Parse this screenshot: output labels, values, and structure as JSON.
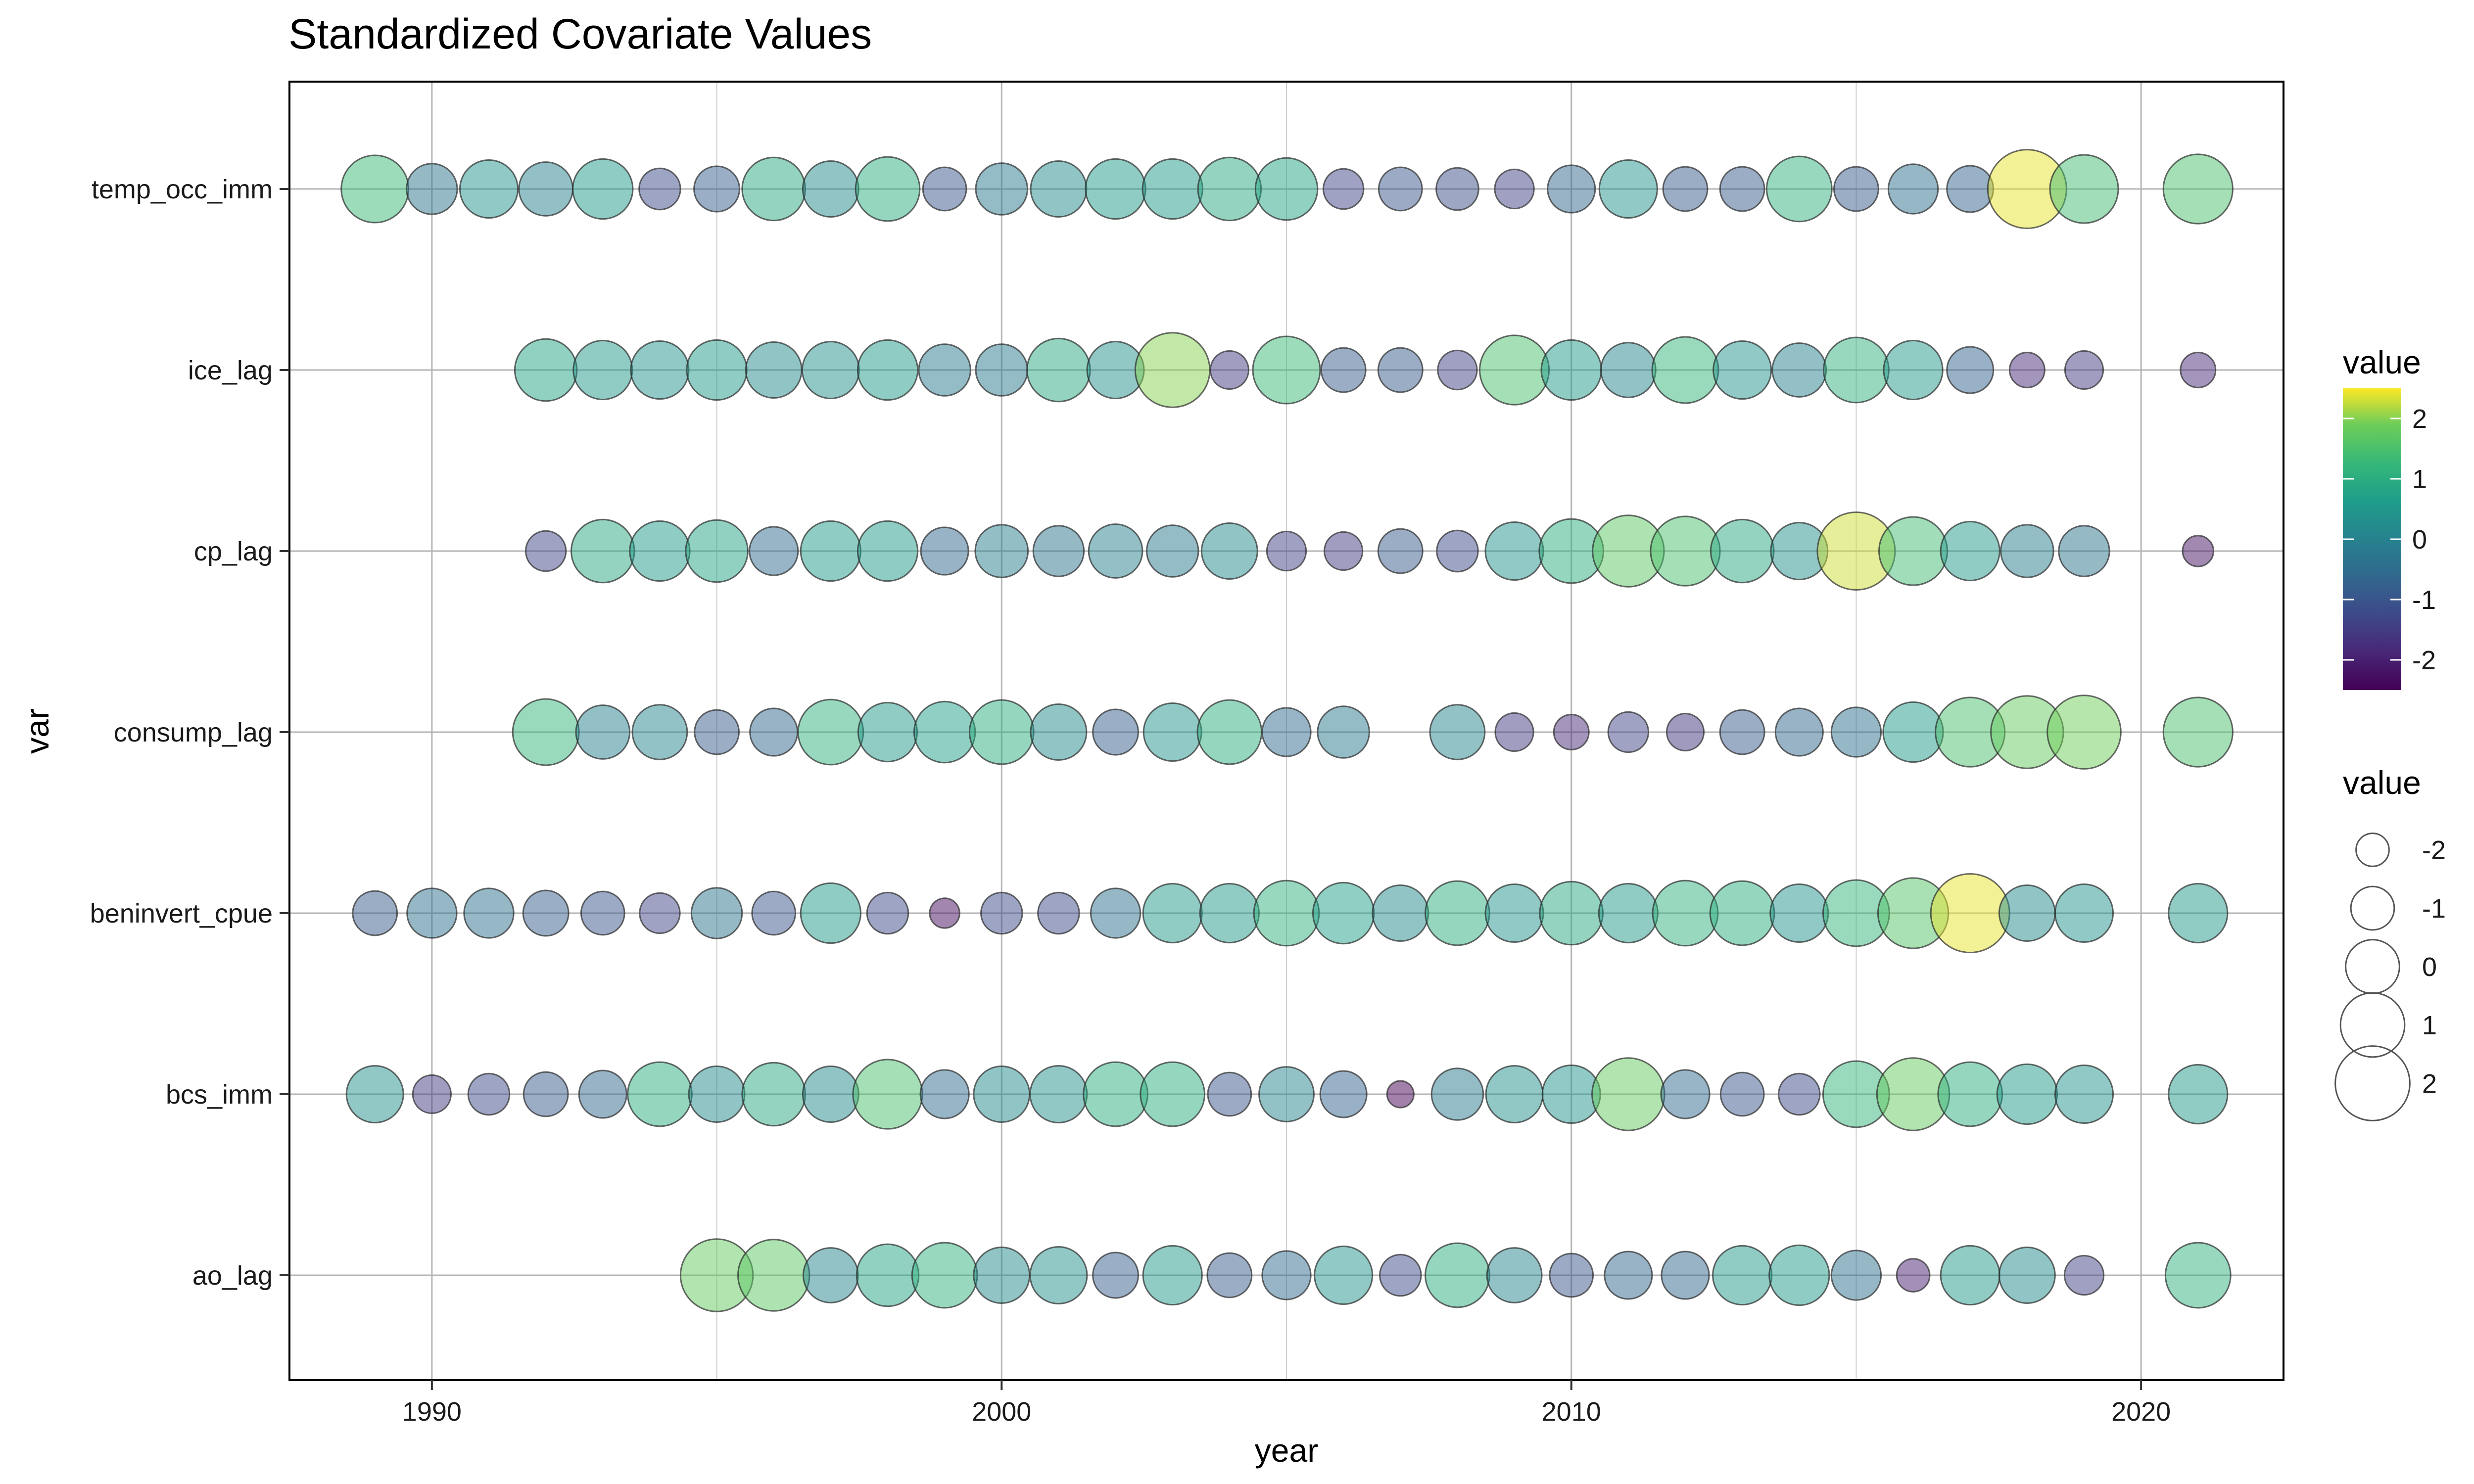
{
  "chart_data": {
    "type": "scatter",
    "title": "Standardized Covariate Values",
    "xlabel": "year",
    "ylabel": "var",
    "xlim": [
      1987.5,
      2022.5
    ],
    "x_ticks": [
      1990,
      2000,
      2010,
      2020
    ],
    "categories": [
      "temp_occ_imm",
      "ice_lag",
      "cp_lag",
      "consump_lag",
      "beninvert_cpue",
      "bcs_imm",
      "ao_lag"
    ],
    "color_legend": {
      "title": "value",
      "ticks": [
        2,
        1,
        0,
        -1,
        -2
      ],
      "range": [
        -2.5,
        2.5
      ]
    },
    "size_legend": {
      "title": "value",
      "values": [
        -2,
        -1,
        0,
        1,
        2
      ]
    },
    "grid": true,
    "series": [
      {
        "var": "temp_occ_imm",
        "x": [
          1989,
          1990,
          1991,
          1992,
          1993,
          1994,
          1995,
          1996,
          1997,
          1998,
          1999,
          2000,
          2001,
          2002,
          2003,
          2004,
          2005,
          2006,
          2007,
          2008,
          2009,
          2010,
          2011,
          2012,
          2013,
          2014,
          2015,
          2016,
          2017,
          2018,
          2019,
          2021
        ],
        "values": [
          1.3,
          -0.3,
          0.4,
          0.0,
          0.6,
          -1.2,
          -0.8,
          0.9,
          0.2,
          1.0,
          -1.0,
          -0.2,
          0.2,
          0.6,
          0.6,
          0.9,
          0.8,
          -1.3,
          -1.0,
          -1.1,
          -1.4,
          -0.6,
          0.4,
          -0.9,
          -0.9,
          1.1,
          -0.9,
          -0.4,
          -0.7,
          2.4,
          1.4,
          1.5
        ]
      },
      {
        "var": "ice_lag",
        "x": [
          1992,
          1993,
          1994,
          1995,
          1996,
          1997,
          1998,
          1999,
          2000,
          2001,
          2002,
          2003,
          2004,
          2005,
          2006,
          2007,
          2008,
          2009,
          2010,
          2011,
          2012,
          2013,
          2014,
          2015,
          2016,
          2017,
          2018,
          2019,
          2021
        ],
        "values": [
          0.8,
          0.5,
          0.4,
          0.6,
          0.2,
          0.3,
          0.6,
          -0.2,
          -0.2,
          0.9,
          0.3,
          2.0,
          -1.5,
          1.3,
          -0.9,
          -0.9,
          -1.4,
          1.5,
          0.6,
          0.1,
          1.2,
          0.4,
          0.0,
          1.1,
          0.5,
          -0.7,
          -1.8,
          -1.5,
          -1.8
        ]
      },
      {
        "var": "cp_lag",
        "x": [
          1992,
          1993,
          1994,
          1995,
          1996,
          1997,
          1998,
          1999,
          2000,
          2001,
          2002,
          2003,
          2004,
          2005,
          2006,
          2007,
          2008,
          2009,
          2010,
          2011,
          2012,
          2013,
          2014,
          2015,
          2016,
          2017,
          2018,
          2019,
          2021
        ],
        "values": [
          -1.3,
          0.9,
          0.6,
          0.8,
          -0.5,
          0.6,
          0.6,
          -0.6,
          -0.1,
          -0.3,
          0.0,
          -0.2,
          0.2,
          -1.4,
          -1.5,
          -0.9,
          -1.2,
          0.4,
          1.0,
          1.7,
          1.5,
          0.9,
          0.3,
          2.3,
          1.4,
          0.5,
          -0.1,
          -0.3,
          -2.2
        ]
      },
      {
        "var": "consump_lag",
        "x": [
          1992,
          1993,
          1994,
          1995,
          1996,
          1997,
          1998,
          1999,
          2000,
          2001,
          2002,
          2003,
          2004,
          2005,
          2006,
          2008,
          2009,
          2010,
          2011,
          2012,
          2013,
          2014,
          2015,
          2016,
          2017,
          2018,
          2019,
          2021
        ],
        "values": [
          1.2,
          0.0,
          0.1,
          -0.9,
          -0.6,
          1.1,
          0.5,
          0.7,
          1.0,
          0.2,
          -0.8,
          0.4,
          1.0,
          -0.5,
          -0.2,
          0.1,
          -1.5,
          -1.8,
          -1.3,
          -1.6,
          -0.9,
          -0.6,
          -0.4,
          0.6,
          1.5,
          1.8,
          1.9,
          1.5
        ]
      },
      {
        "var": "beninvert_cpue",
        "x": [
          1989,
          1990,
          1991,
          1992,
          1993,
          1994,
          1995,
          1996,
          1997,
          1998,
          1999,
          2000,
          2001,
          2002,
          2003,
          2004,
          2005,
          2006,
          2007,
          2008,
          2009,
          2010,
          2011,
          2012,
          2013,
          2014,
          2015,
          2016,
          2017,
          2018,
          2019,
          2021
        ],
        "values": [
          -0.9,
          -0.4,
          -0.4,
          -0.8,
          -1.0,
          -1.3,
          -0.3,
          -1.0,
          0.6,
          -1.2,
          -2.3,
          -1.2,
          -1.2,
          -0.4,
          0.5,
          0.5,
          1.1,
          0.7,
          0.2,
          1.0,
          0.4,
          0.9,
          0.5,
          1.1,
          1.0,
          0.4,
          1.2,
          1.6,
          2.4,
          0.2,
          0.4,
          0.5
        ]
      },
      {
        "var": "bcs_imm",
        "x": [
          1989,
          1990,
          1991,
          1992,
          1993,
          1994,
          1995,
          1996,
          1997,
          1998,
          1999,
          2000,
          2001,
          2002,
          2003,
          2004,
          2005,
          2006,
          2007,
          2008,
          2009,
          2010,
          2011,
          2012,
          2013,
          2014,
          2015,
          2016,
          2017,
          2018,
          2019,
          2021
        ],
        "values": [
          0.3,
          -1.5,
          -1.2,
          -0.9,
          -0.6,
          1.0,
          0.2,
          0.9,
          0.2,
          1.5,
          -0.5,
          0.2,
          0.3,
          1.0,
          1.0,
          -1.0,
          0.1,
          -0.7,
          -2.6,
          -0.2,
          0.3,
          0.4,
          1.8,
          -0.5,
          -1.0,
          -1.2,
          1.2,
          1.8,
          1.0,
          0.6,
          0.4,
          0.5
        ]
      },
      {
        "var": "ao_lag",
        "x": [
          1995,
          1996,
          1997,
          1998,
          1999,
          2000,
          2001,
          2002,
          2003,
          2004,
          2005,
          2006,
          2007,
          2008,
          2009,
          2010,
          2011,
          2012,
          2013,
          2014,
          2015,
          2016,
          2017,
          2018,
          2019,
          2021
        ],
        "values": [
          1.8,
          1.7,
          0.1,
          0.8,
          1.1,
          0.2,
          0.3,
          -0.8,
          0.5,
          -0.9,
          -0.5,
          0.4,
          -1.2,
          1.0,
          0.1,
          -1.0,
          -0.6,
          -0.6,
          0.5,
          0.6,
          -0.4,
          -2.0,
          0.5,
          0.2,
          -1.4,
          1.1
        ]
      }
    ]
  }
}
